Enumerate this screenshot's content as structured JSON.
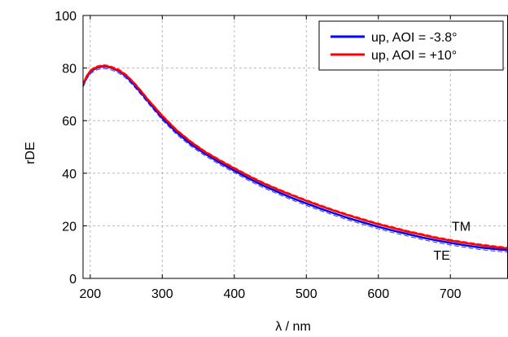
{
  "chart_data": {
    "type": "line",
    "title": "",
    "xlabel": "λ / nm",
    "ylabel": "rDE",
    "xlim": [
      190,
      780
    ],
    "ylim": [
      0,
      100
    ],
    "xticks": [
      200,
      300,
      400,
      500,
      600,
      700
    ],
    "yticks": [
      0,
      20,
      40,
      60,
      80,
      100
    ],
    "grid": true,
    "legend_position": "top-right",
    "annotations": [
      {
        "text": "TM",
        "x": 715,
        "y": 20
      },
      {
        "text": "TE",
        "x": 688,
        "y": 9
      }
    ],
    "series": [
      {
        "name": "up, AOI = -3.8°",
        "color": "#0000ff",
        "style": "solid",
        "points": [
          [
            190,
            73.5
          ],
          [
            195,
            76.5
          ],
          [
            200,
            78.5
          ],
          [
            205,
            79.5
          ],
          [
            210,
            80.2
          ],
          [
            215,
            80.5
          ],
          [
            220,
            80.6
          ],
          [
            225,
            80.4
          ],
          [
            230,
            80
          ],
          [
            240,
            78.8
          ],
          [
            250,
            76.8
          ],
          [
            260,
            74
          ],
          [
            270,
            70.8
          ],
          [
            280,
            67.5
          ],
          [
            300,
            61
          ],
          [
            320,
            55.5
          ],
          [
            340,
            51
          ],
          [
            360,
            47.3
          ],
          [
            380,
            44
          ],
          [
            400,
            41
          ],
          [
            420,
            38
          ],
          [
            440,
            35.3
          ],
          [
            460,
            32.9
          ],
          [
            480,
            30.6
          ],
          [
            500,
            28.5
          ],
          [
            520,
            26.5
          ],
          [
            540,
            24.6
          ],
          [
            560,
            22.8
          ],
          [
            580,
            21.2
          ],
          [
            600,
            19.6
          ],
          [
            620,
            18.2
          ],
          [
            640,
            16.9
          ],
          [
            660,
            15.6
          ],
          [
            680,
            14.5
          ],
          [
            700,
            13.5
          ],
          [
            720,
            12.6
          ],
          [
            740,
            11.8
          ],
          [
            760,
            11.2
          ],
          [
            780,
            10.7
          ]
        ]
      },
      {
        "name": "up, AOI = +10°",
        "color": "#ff0000",
        "style": "solid",
        "points": [
          [
            190,
            73.8
          ],
          [
            195,
            76.8
          ],
          [
            200,
            78.8
          ],
          [
            205,
            79.8
          ],
          [
            210,
            80.4
          ],
          [
            215,
            80.7
          ],
          [
            220,
            80.8
          ],
          [
            225,
            80.6
          ],
          [
            230,
            80.2
          ],
          [
            240,
            79.1
          ],
          [
            250,
            77.2
          ],
          [
            260,
            74.5
          ],
          [
            270,
            71.4
          ],
          [
            280,
            68
          ],
          [
            300,
            61.8
          ],
          [
            320,
            56.3
          ],
          [
            340,
            51.8
          ],
          [
            360,
            48
          ],
          [
            380,
            44.8
          ],
          [
            400,
            41.8
          ],
          [
            420,
            38.9
          ],
          [
            440,
            36.2
          ],
          [
            460,
            33.8
          ],
          [
            480,
            31.6
          ],
          [
            500,
            29.5
          ],
          [
            520,
            27.5
          ],
          [
            540,
            25.6
          ],
          [
            560,
            23.8
          ],
          [
            580,
            22.2
          ],
          [
            600,
            20.6
          ],
          [
            620,
            19.2
          ],
          [
            640,
            17.8
          ],
          [
            660,
            16.6
          ],
          [
            680,
            15.4
          ],
          [
            700,
            14.4
          ],
          [
            720,
            13.5
          ],
          [
            740,
            12.7
          ],
          [
            760,
            12
          ],
          [
            780,
            11.4
          ]
        ]
      }
    ]
  }
}
